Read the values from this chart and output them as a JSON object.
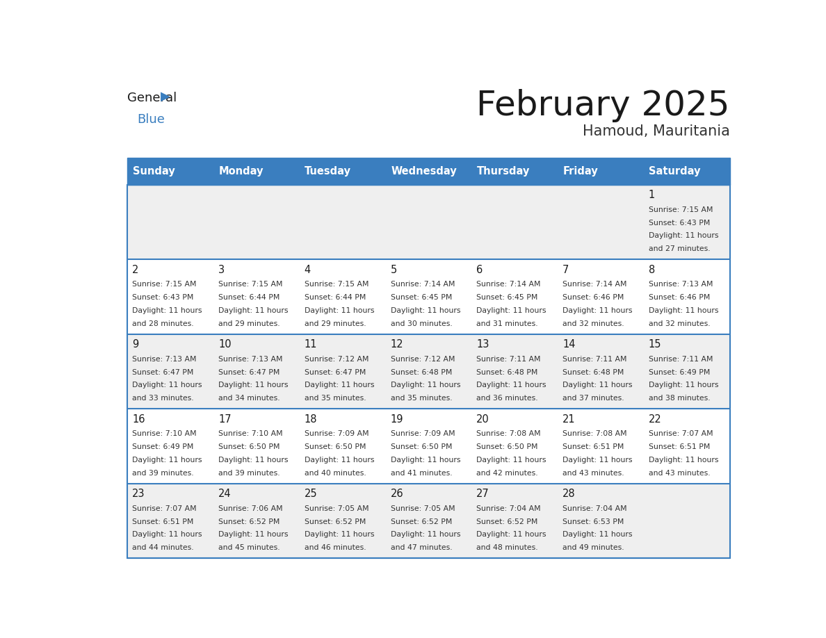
{
  "title": "February 2025",
  "subtitle": "Hamoud, Mauritania",
  "header_color": "#3a7ebf",
  "header_text_color": "#ffffff",
  "day_names": [
    "Sunday",
    "Monday",
    "Tuesday",
    "Wednesday",
    "Thursday",
    "Friday",
    "Saturday"
  ],
  "background_color": "#ffffff",
  "cell_bg_odd": "#efefef",
  "cell_bg_even": "#ffffff",
  "title_color": "#1a1a1a",
  "subtitle_color": "#333333",
  "day_num_color": "#1a1a1a",
  "cell_text_color": "#333333",
  "border_color": "#3a7ebf",
  "calendar": [
    [
      null,
      null,
      null,
      null,
      null,
      null,
      1
    ],
    [
      2,
      3,
      4,
      5,
      6,
      7,
      8
    ],
    [
      9,
      10,
      11,
      12,
      13,
      14,
      15
    ],
    [
      16,
      17,
      18,
      19,
      20,
      21,
      22
    ],
    [
      23,
      24,
      25,
      26,
      27,
      28,
      null
    ]
  ],
  "sunrise": {
    "1": "7:15 AM",
    "2": "7:15 AM",
    "3": "7:15 AM",
    "4": "7:15 AM",
    "5": "7:14 AM",
    "6": "7:14 AM",
    "7": "7:14 AM",
    "8": "7:13 AM",
    "9": "7:13 AM",
    "10": "7:13 AM",
    "11": "7:12 AM",
    "12": "7:12 AM",
    "13": "7:11 AM",
    "14": "7:11 AM",
    "15": "7:11 AM",
    "16": "7:10 AM",
    "17": "7:10 AM",
    "18": "7:09 AM",
    "19": "7:09 AM",
    "20": "7:08 AM",
    "21": "7:08 AM",
    "22": "7:07 AM",
    "23": "7:07 AM",
    "24": "7:06 AM",
    "25": "7:05 AM",
    "26": "7:05 AM",
    "27": "7:04 AM",
    "28": "7:04 AM"
  },
  "sunset": {
    "1": "6:43 PM",
    "2": "6:43 PM",
    "3": "6:44 PM",
    "4": "6:44 PM",
    "5": "6:45 PM",
    "6": "6:45 PM",
    "7": "6:46 PM",
    "8": "6:46 PM",
    "9": "6:47 PM",
    "10": "6:47 PM",
    "11": "6:47 PM",
    "12": "6:48 PM",
    "13": "6:48 PM",
    "14": "6:48 PM",
    "15": "6:49 PM",
    "16": "6:49 PM",
    "17": "6:50 PM",
    "18": "6:50 PM",
    "19": "6:50 PM",
    "20": "6:50 PM",
    "21": "6:51 PM",
    "22": "6:51 PM",
    "23": "6:51 PM",
    "24": "6:52 PM",
    "25": "6:52 PM",
    "26": "6:52 PM",
    "27": "6:52 PM",
    "28": "6:53 PM"
  },
  "daylight_hours": {
    "1": "11",
    "2": "11",
    "3": "11",
    "4": "11",
    "5": "11",
    "6": "11",
    "7": "11",
    "8": "11",
    "9": "11",
    "10": "11",
    "11": "11",
    "12": "11",
    "13": "11",
    "14": "11",
    "15": "11",
    "16": "11",
    "17": "11",
    "18": "11",
    "19": "11",
    "20": "11",
    "21": "11",
    "22": "11",
    "23": "11",
    "24": "11",
    "25": "11",
    "26": "11",
    "27": "11",
    "28": "11"
  },
  "daylight_minutes": {
    "1": "27",
    "2": "28",
    "3": "29",
    "4": "29",
    "5": "30",
    "6": "31",
    "7": "32",
    "8": "32",
    "9": "33",
    "10": "34",
    "11": "35",
    "12": "35",
    "13": "36",
    "14": "37",
    "15": "38",
    "16": "39",
    "17": "39",
    "18": "40",
    "19": "41",
    "20": "42",
    "21": "43",
    "22": "43",
    "23": "44",
    "24": "45",
    "25": "46",
    "26": "47",
    "27": "48",
    "28": "49"
  }
}
